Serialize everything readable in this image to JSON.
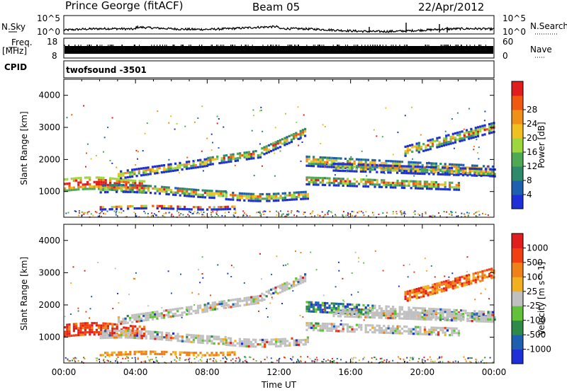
{
  "header": {
    "station": "Prince George (fitACF)",
    "beam": "Beam 05",
    "date": "22/Apr/2012"
  },
  "noise_panel": {
    "left_label": "N.Sky",
    "right_label": "N.Search",
    "ticks_left": [
      "10^5",
      "10^0"
    ],
    "ticks_right": [
      "10^5",
      "10^0"
    ]
  },
  "freq_panel": {
    "left_label_1": "Freq.",
    "left_label_2": "[MHz]",
    "ticks_left": [
      "18",
      "8"
    ],
    "right_label": "Nave",
    "ticks_right": [
      "60",
      "0"
    ]
  },
  "cpid": {
    "label": "CPID",
    "value": "twofsound -3501"
  },
  "chart_data": [
    {
      "type": "heatmap",
      "quantity": "power",
      "ylabel": "Slant Range [km]",
      "yticks": [
        "1000",
        "2000",
        "3000",
        "4000"
      ],
      "ylim": [
        200,
        4500
      ],
      "xlim_hours": [
        0,
        24
      ],
      "colorbar": {
        "label": "Power [dB]",
        "ticks": [
          "4",
          "8",
          "12",
          "16",
          "20",
          "24",
          "28"
        ],
        "colors": [
          "#1f2fd8",
          "#1f5fb0",
          "#2e8a6a",
          "#4fa853",
          "#9ed640",
          "#f0c020",
          "#f09018",
          "#f05a10",
          "#e01e1e"
        ]
      }
    },
    {
      "type": "heatmap",
      "quantity": "velocity",
      "ylabel": "Slant Range [km]",
      "yticks": [
        "1000",
        "2000",
        "3000",
        "4000"
      ],
      "ylim": [
        200,
        4500
      ],
      "xlim_hours": [
        0,
        24
      ],
      "colorbar": {
        "label": "Velocity [m s^-1]",
        "ticks": [
          "1000",
          "500",
          "100",
          "25",
          "-25",
          "-100",
          "-500",
          "-1000"
        ],
        "colors": [
          "#1f2fd8",
          "#1f5fb0",
          "#2e8a4a",
          "#62c03a",
          "#c0c0c0",
          "#f0b020",
          "#f08018",
          "#f04010",
          "#e01e1e"
        ]
      }
    }
  ],
  "x_axis": {
    "ticks": [
      "00:00",
      "04:00",
      "08:00",
      "12:00",
      "16:00",
      "20:00",
      "00:00"
    ],
    "label": "Time UT"
  }
}
